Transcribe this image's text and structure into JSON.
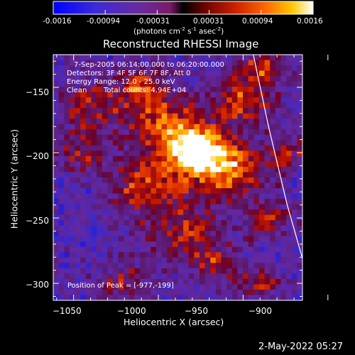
{
  "colorbar": {
    "tick_labels": [
      "-0.0016",
      "-0.00094",
      "-0.00031",
      "0.00031",
      "0.00094",
      "0.0016"
    ],
    "units_text": "(photons cm",
    "units_exp1": "-2",
    "units_mid": " s",
    "units_exp2": "-1",
    "units_end": " asec",
    "units_exp3": "-2",
    "units_close": ")"
  },
  "title": "Reconstructed RHESSI Image",
  "info": {
    "time_range": "7-Sep-2005 06:14:00.000 to 06:20:00.000",
    "detectors": "Detectors: 3F 4F 5F 6F 7F 8F, Att 0",
    "energy": "Energy Range: 12.0 - 25.0 keV",
    "clean": "Clean",
    "total_counts": "Total counts: 4.94E+04",
    "peak": "Position of Peak = [-977,-199]"
  },
  "footer": {
    "date": "2-May-2022 05:27"
  },
  "chart_data": {
    "type": "heatmap",
    "title": "Reconstructed RHESSI Image",
    "xlabel": "Heliocentric X (arcsec)",
    "ylabel": "Heliocentric Y (arcsec)",
    "xlim": [
      -1062,
      -915
    ],
    "ylim": [
      -313,
      -125
    ],
    "x_ticks": [
      -1050,
      -1000,
      -950,
      -900
    ],
    "y_ticks": [
      -150,
      -200,
      -250,
      -300
    ],
    "x_tick_labels": [
      "−1050",
      "−1000",
      "−950",
      "−900"
    ],
    "y_tick_labels": [
      "−150",
      "−200",
      "−250",
      "−300"
    ],
    "colorscale_range": [
      -0.0016,
      0.0016
    ],
    "peak_position": [
      -977,
      -199
    ],
    "limb_curve": [
      [
        -944,
        -125
      ],
      [
        -935,
        -180
      ],
      [
        -924,
        -240
      ],
      [
        -913,
        -290
      ],
      [
        -904,
        -313
      ]
    ],
    "sources": [
      {
        "x": -978,
        "y": -198,
        "sigma": 11,
        "amp": 1.0
      },
      {
        "x": -960,
        "y": -212,
        "sigma": 15,
        "amp": 0.75
      },
      {
        "x": -995,
        "y": -178,
        "sigma": 16,
        "amp": 0.6
      },
      {
        "x": -1005,
        "y": -225,
        "sigma": 15,
        "amp": 0.6
      },
      {
        "x": -950,
        "y": -160,
        "sigma": 12,
        "amp": 0.55
      },
      {
        "x": -940,
        "y": -135,
        "sigma": 9,
        "amp": 0.55
      },
      {
        "x": -1040,
        "y": -165,
        "sigma": 13,
        "amp": 0.45
      },
      {
        "x": -985,
        "y": -262,
        "sigma": 15,
        "amp": 0.45
      },
      {
        "x": -935,
        "y": -250,
        "sigma": 9,
        "amp": 0.5
      },
      {
        "x": -1010,
        "y": -150,
        "sigma": 10,
        "amp": 0.5
      },
      {
        "x": -1045,
        "y": -200,
        "sigma": 10,
        "amp": 0.4
      },
      {
        "x": -965,
        "y": -285,
        "sigma": 10,
        "amp": 0.4
      },
      {
        "x": -1020,
        "y": -300,
        "sigma": 10,
        "amp": 0.35
      },
      {
        "x": -940,
        "y": -300,
        "sigma": 8,
        "amp": 0.45
      },
      {
        "x": -925,
        "y": -200,
        "sigma": 8,
        "amp": 0.4
      }
    ]
  }
}
